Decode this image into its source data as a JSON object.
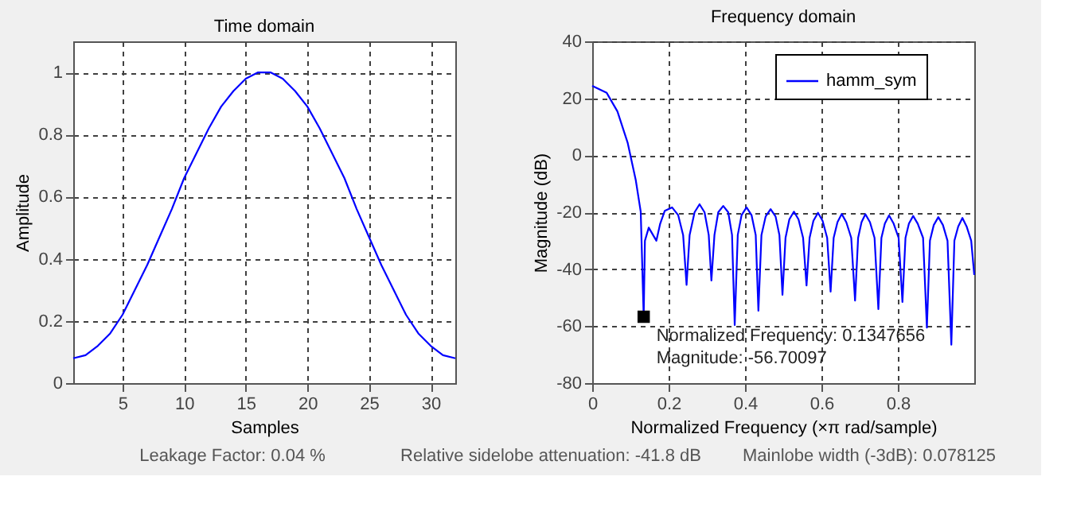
{
  "chart_data": [
    {
      "type": "line",
      "title": "Time domain",
      "xlabel": "Samples",
      "ylabel": "Amplitude",
      "x": [
        1,
        2,
        3,
        4,
        5,
        6,
        7,
        8,
        9,
        10,
        11,
        12,
        13,
        14,
        15,
        16,
        17,
        18,
        19,
        20,
        21,
        22,
        23,
        24,
        25,
        26,
        27,
        28,
        29,
        30,
        31,
        32
      ],
      "series": [
        {
          "color": "#0000ff",
          "values": [
            0.08,
            0.09,
            0.12,
            0.16,
            0.22,
            0.3,
            0.38,
            0.47,
            0.56,
            0.66,
            0.74,
            0.82,
            0.89,
            0.94,
            0.98,
            1.0,
            1.0,
            0.98,
            0.94,
            0.89,
            0.82,
            0.74,
            0.66,
            0.56,
            0.47,
            0.38,
            0.3,
            0.22,
            0.16,
            0.12,
            0.09,
            0.08
          ]
        }
      ],
      "xlim": [
        1,
        32
      ],
      "xticks": [
        5,
        10,
        15,
        20,
        25,
        30
      ],
      "ylim": [
        0,
        1.1
      ],
      "yticks": [
        0,
        0.2,
        0.4,
        0.6,
        0.8,
        1
      ],
      "grid": true,
      "legend": false,
      "annotations": [
        "Leakage Factor: 0.04 %"
      ]
    },
    {
      "type": "line",
      "title": "Frequency domain",
      "xlabel": "Normalized Frequency  (×π rad/sample)",
      "ylabel": "Magnitude (dB)",
      "x": [
        0,
        0.038,
        0.066,
        0.093,
        0.114,
        0.127,
        0.1347656,
        0.138,
        0.148,
        0.168,
        0.178,
        0.19,
        0.209,
        0.225,
        0.238,
        0.247,
        0.255,
        0.268,
        0.281,
        0.294,
        0.305,
        0.312,
        0.32,
        0.33,
        0.343,
        0.356,
        0.366,
        0.373,
        0.381,
        0.391,
        0.404,
        0.417,
        0.428,
        0.435,
        0.443,
        0.454,
        0.467,
        0.48,
        0.49,
        0.498,
        0.506,
        0.516,
        0.528,
        0.54,
        0.552,
        0.561,
        0.569,
        0.579,
        0.591,
        0.603,
        0.615,
        0.624,
        0.632,
        0.642,
        0.653,
        0.665,
        0.678,
        0.688,
        0.696,
        0.705,
        0.715,
        0.727,
        0.739,
        0.749,
        0.757,
        0.766,
        0.777,
        0.789,
        0.802,
        0.812,
        0.82,
        0.829,
        0.84,
        0.852,
        0.866,
        0.876,
        0.884,
        0.894,
        0.906,
        0.918,
        0.93,
        0.94,
        0.948,
        0.958,
        0.969,
        0.98,
        0.992,
        1.0
      ],
      "series": [
        {
          "name": "hamm_sym",
          "color": "#0000ff",
          "values": [
            24.4,
            21.9,
            15.4,
            4.3,
            -8.7,
            -19.8,
            -56.7,
            -30,
            -25.4,
            -30,
            -24,
            -19.5,
            -18.3,
            -21,
            -28,
            -45.5,
            -28,
            -20,
            -17.2,
            -20,
            -28,
            -44,
            -28,
            -20,
            -17.8,
            -20,
            -28,
            -59.6,
            -28,
            -21,
            -18.3,
            -21,
            -28,
            -54.6,
            -28,
            -21.5,
            -18.9,
            -21.5,
            -28,
            -49,
            -29,
            -22.5,
            -19.8,
            -22.5,
            -29,
            -45.7,
            -29,
            -23,
            -20.2,
            -23,
            -29,
            -47.9,
            -29,
            -23.5,
            -20.6,
            -23.5,
            -29,
            -51,
            -29,
            -23.5,
            -20.7,
            -23.5,
            -29,
            -54,
            -29,
            -24,
            -21.1,
            -24,
            -29,
            -51.5,
            -29,
            -24,
            -21.3,
            -24,
            -29,
            -60.5,
            -30,
            -24.5,
            -21.7,
            -24.5,
            -30,
            -66.5,
            -30,
            -25,
            -22,
            -25,
            -30,
            -42
          ]
        }
      ],
      "xlim": [
        0,
        1
      ],
      "xticks": [
        0,
        0.2,
        0.4,
        0.6,
        0.8
      ],
      "ylim": [
        -80,
        40
      ],
      "yticks": [
        -80,
        -60,
        -40,
        -20,
        0,
        20,
        40
      ],
      "grid": true,
      "legend": "top right",
      "annotations": [
        {
          "text": "Normalized Frequency: 0.1347656\nMagnitude: -56.70097",
          "x": 0.1347656,
          "y": -56.70097
        },
        "Relative sidelobe attenuation: -41.8 dB",
        "Mainlobe width (-3dB): 0.078125"
      ]
    }
  ]
}
